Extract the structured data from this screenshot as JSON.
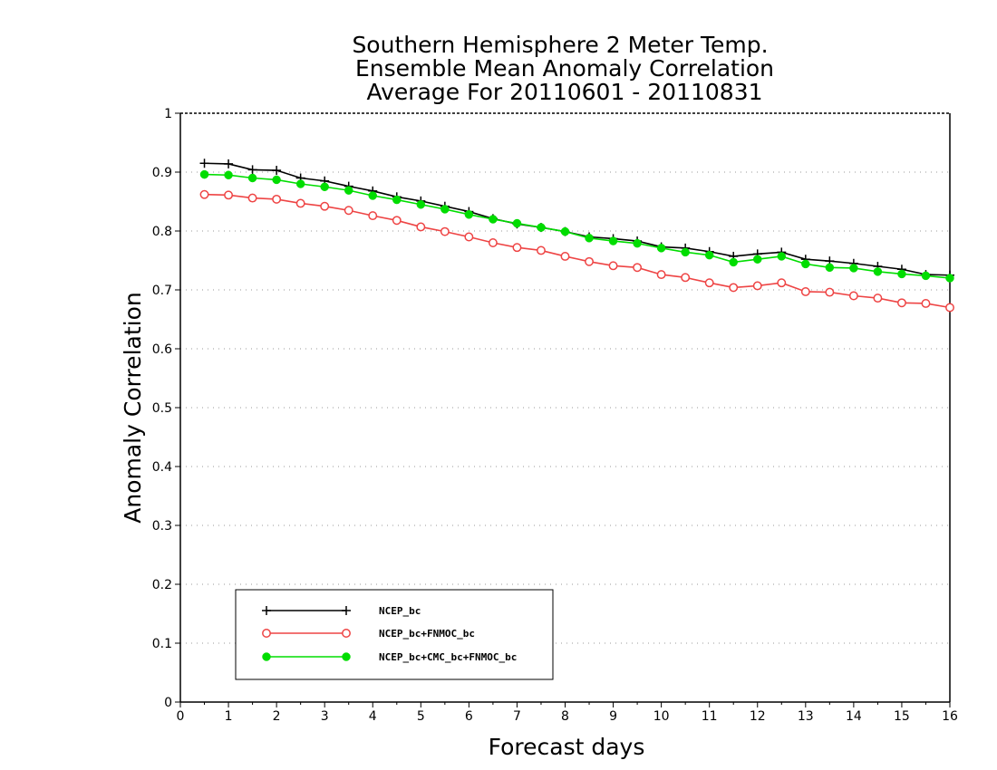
{
  "chart_data": {
    "type": "line",
    "title": [
      "Southern Hemisphere 2 Meter Temp.",
      "Ensemble Mean Anomaly Correlation",
      "Average For 20110601 - 20110831"
    ],
    "xlabel": "Forecast days",
    "ylabel": "Anomaly Correlation",
    "xlim": [
      0,
      16
    ],
    "ylim": [
      0,
      1
    ],
    "x_ticks": [
      0,
      1,
      2,
      3,
      4,
      5,
      6,
      7,
      8,
      9,
      10,
      11,
      12,
      13,
      14,
      15,
      16
    ],
    "y_ticks": [
      0,
      0.1,
      0.2,
      0.3,
      0.4,
      0.5,
      0.6,
      0.7,
      0.8,
      0.9,
      1
    ],
    "grid": "horizontal dotted",
    "legend_position": "bottom-left",
    "x": [
      0.5,
      1.0,
      1.5,
      2.0,
      2.5,
      3.0,
      3.5,
      4.0,
      4.5,
      5.0,
      5.5,
      6.0,
      6.5,
      7.0,
      7.5,
      8.0,
      8.5,
      9.0,
      9.5,
      10.0,
      10.5,
      11.0,
      11.5,
      12.0,
      12.5,
      13.0,
      13.5,
      14.0,
      14.5,
      15.0,
      15.5,
      16.0
    ],
    "series": [
      {
        "name": "NCEP_bc",
        "color": "#000000",
        "marker": "plus",
        "values": [
          0.915,
          0.914,
          0.904,
          0.903,
          0.89,
          0.885,
          0.876,
          0.868,
          0.858,
          0.851,
          0.842,
          0.833,
          0.821,
          0.812,
          0.806,
          0.799,
          0.79,
          0.787,
          0.783,
          0.773,
          0.771,
          0.765,
          0.757,
          0.761,
          0.764,
          0.752,
          0.749,
          0.745,
          0.74,
          0.735,
          0.726,
          0.725
        ]
      },
      {
        "name": "NCEP_bc+FNMOC_bc",
        "color": "#ee4444",
        "marker": "open-circle",
        "values": [
          0.862,
          0.861,
          0.856,
          0.854,
          0.847,
          0.842,
          0.835,
          0.826,
          0.818,
          0.807,
          0.799,
          0.79,
          0.78,
          0.772,
          0.767,
          0.757,
          0.748,
          0.741,
          0.738,
          0.726,
          0.721,
          0.712,
          0.704,
          0.707,
          0.712,
          0.697,
          0.696,
          0.69,
          0.686,
          0.678,
          0.677,
          0.67
        ]
      },
      {
        "name": "NCEP_bc+CMC_bc+FNMOC_bc",
        "color": "#00dd00",
        "marker": "filled-circle",
        "values": [
          0.896,
          0.895,
          0.89,
          0.887,
          0.88,
          0.875,
          0.869,
          0.86,
          0.853,
          0.845,
          0.837,
          0.828,
          0.82,
          0.813,
          0.806,
          0.799,
          0.788,
          0.783,
          0.779,
          0.771,
          0.764,
          0.759,
          0.747,
          0.752,
          0.757,
          0.744,
          0.738,
          0.737,
          0.731,
          0.727,
          0.724,
          0.72
        ]
      }
    ]
  }
}
